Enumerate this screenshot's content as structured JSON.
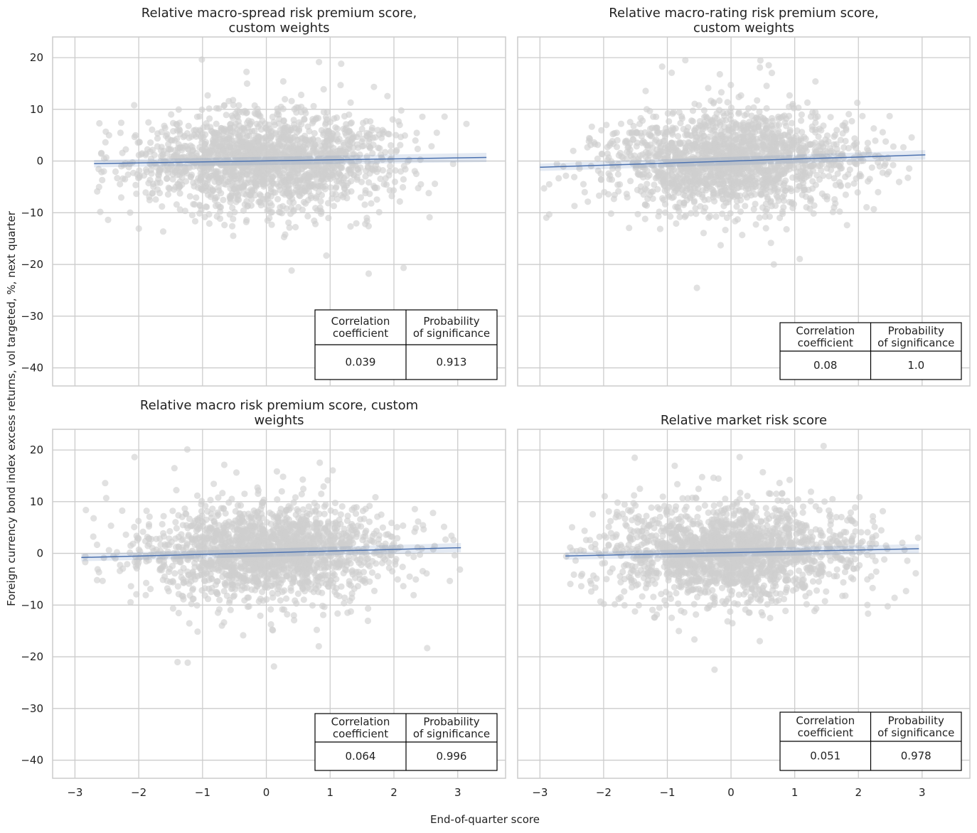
{
  "figure": {
    "xlabel": "End-of-quarter score",
    "ylabel": "Foreign currency bond index excess returns, vol targeted, %, next quarter",
    "xticks": [
      "−3",
      "−2",
      "−1",
      "0",
      "1",
      "2",
      "3"
    ],
    "yticks": [
      "−40",
      "−30",
      "−20",
      "−10",
      "0",
      "10",
      "20"
    ],
    "colors": {
      "scatter": "#cfcfcf",
      "line": "#4c72b0",
      "band": "#4c72b0",
      "grid": "#cccccc",
      "spine": "#cccccc"
    }
  },
  "chart_data": [
    {
      "type": "scatter",
      "title_lines": [
        "Relative macro-spread risk premium score,",
        "custom weights"
      ],
      "xlim": [
        -3.35,
        3.75
      ],
      "ylim": [
        -43.5,
        24
      ],
      "x_range": [
        -2.7,
        3.45
      ],
      "regression": {
        "x": [
          -2.7,
          3.45
        ],
        "y": [
          -0.5,
          0.7
        ]
      },
      "points_approx": 1800,
      "table": {
        "headers": [
          "Correlation\ncoefficient",
          "Probability\nof significance"
        ],
        "values": [
          "0.039",
          "0.913"
        ]
      }
    },
    {
      "type": "scatter",
      "title_lines": [
        "Relative macro-rating risk premium score,",
        "custom weights"
      ],
      "xlim": [
        -3.35,
        3.75
      ],
      "ylim": [
        -43.5,
        24
      ],
      "x_range": [
        -3.0,
        3.05
      ],
      "regression": {
        "x": [
          -3.0,
          3.05
        ],
        "y": [
          -1.2,
          1.2
        ]
      },
      "points_approx": 1800,
      "table": {
        "headers": [
          "Correlation\ncoefficient",
          "Probability\nof significance"
        ],
        "values": [
          "0.08",
          "1.0"
        ]
      }
    },
    {
      "type": "scatter",
      "title_lines": [
        "Relative macro risk premium score, custom",
        "weights"
      ],
      "xlim": [
        -3.35,
        3.75
      ],
      "ylim": [
        -43.5,
        24
      ],
      "x_range": [
        -2.9,
        3.05
      ],
      "regression": {
        "x": [
          -2.9,
          3.05
        ],
        "y": [
          -0.8,
          1.1
        ]
      },
      "points_approx": 1800,
      "table": {
        "headers": [
          "Correlation\ncoefficient",
          "Probability\nof significance"
        ],
        "values": [
          "0.064",
          "0.996"
        ]
      }
    },
    {
      "type": "scatter",
      "title_lines": [
        "Relative market risk score"
      ],
      "xlim": [
        -3.35,
        3.75
      ],
      "ylim": [
        -43.5,
        24
      ],
      "x_range": [
        -2.6,
        2.95
      ],
      "regression": {
        "x": [
          -2.6,
          2.95
        ],
        "y": [
          -0.5,
          0.9
        ]
      },
      "points_approx": 1800,
      "table": {
        "headers": [
          "Correlation\ncoefficient",
          "Probability\nof significance"
        ],
        "values": [
          "0.051",
          "0.978"
        ]
      }
    }
  ]
}
